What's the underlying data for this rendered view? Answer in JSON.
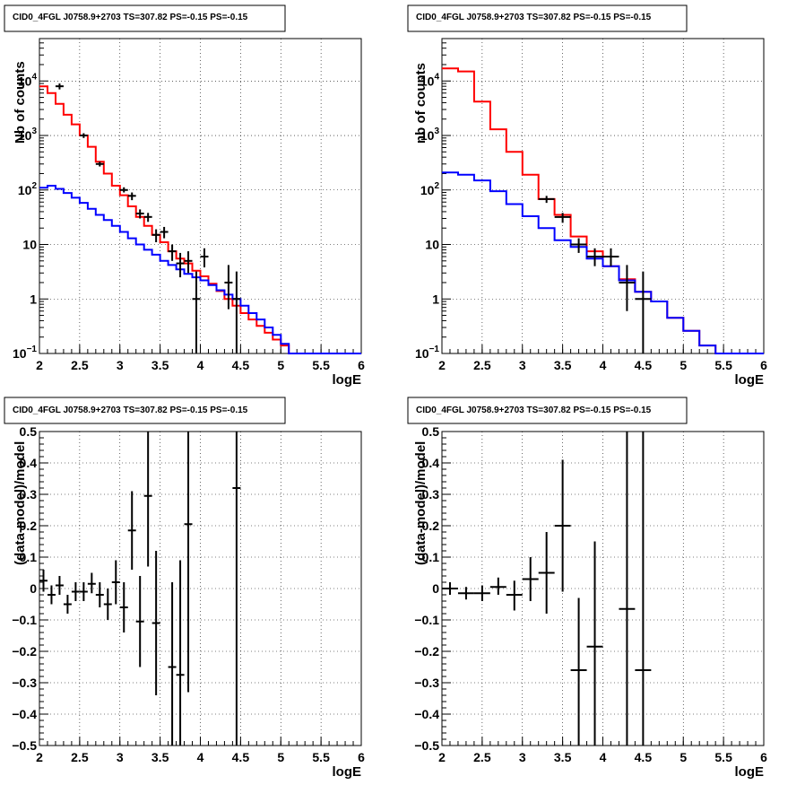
{
  "chart_data": [
    {
      "type": "line",
      "title": "CID0_4FGL J0758.9+2703 TS=307.82 PS=-0.15 PS=-0.15",
      "xlabel": "logE",
      "ylabel": "Nb of counts",
      "xlim": [
        2,
        6
      ],
      "ylim": [
        0.1,
        60000
      ],
      "yscale": "log",
      "grid": true,
      "xticks": [
        "2",
        "2.5",
        "3",
        "3.5",
        "4",
        "4.5",
        "5",
        "5.5",
        "6"
      ],
      "yticks": [
        {
          "v": 0.1,
          "base": "10",
          "exp": "−1"
        },
        {
          "v": 1,
          "text": "1"
        },
        {
          "v": 10,
          "text": "10"
        },
        {
          "v": 100,
          "base": "10",
          "exp": "2"
        },
        {
          "v": 1000,
          "base": "10",
          "exp": "3"
        },
        {
          "v": 10000,
          "base": "10",
          "exp": "4"
        }
      ],
      "bin_edges": [
        2.0,
        2.1,
        2.2,
        2.3,
        2.4,
        2.5,
        2.6,
        2.7,
        2.8,
        2.9,
        3.0,
        3.1,
        3.2,
        3.3,
        3.4,
        3.5,
        3.6,
        3.7,
        3.8,
        3.9,
        4.0,
        4.1,
        4.2,
        4.3,
        4.4,
        4.5,
        4.6,
        4.7,
        4.8,
        4.9,
        5.0,
        5.1,
        5.2,
        5.3,
        5.4,
        5.5,
        5.6,
        5.7,
        5.8,
        5.9,
        6.0
      ],
      "series": [
        {
          "color": "#ff0000",
          "values": [
            8000,
            6000,
            3800,
            2400,
            1600,
            1000,
            620,
            330,
            200,
            120,
            80,
            50,
            32,
            22,
            15,
            11,
            7.5,
            5.5,
            4.5,
            3.3,
            2.6,
            1.9,
            1.4,
            1.0,
            0.75,
            0.55,
            0.42,
            0.32,
            0.24,
            0.18,
            0.14,
            0.1,
            0.08,
            0.07,
            0.06,
            0.06,
            0.06,
            0.06,
            0.06,
            0.06
          ]
        },
        {
          "color": "#0000ff",
          "values": [
            110,
            120,
            105,
            88,
            72,
            58,
            45,
            35,
            28,
            22,
            17,
            13,
            10,
            8,
            6.5,
            5.0,
            4.2,
            3.5,
            2.9,
            2.5,
            2.2,
            1.8,
            1.45,
            1.2,
            1.0,
            0.75,
            0.55,
            0.42,
            0.3,
            0.22,
            0.15,
            0.1,
            0.08,
            0.07,
            0.06,
            0.06,
            0.06,
            0.06,
            0.06,
            0.06
          ]
        }
      ],
      "points": [
        {
          "x": 2.25,
          "y": 8000,
          "lo": 7000,
          "hi": 9000,
          "w": 0.05
        },
        {
          "x": 2.55,
          "y": 1000,
          "lo": 900,
          "hi": 1100,
          "w": 0.05
        },
        {
          "x": 2.75,
          "y": 300,
          "lo": 270,
          "hi": 330,
          "w": 0.05
        },
        {
          "x": 3.05,
          "y": 100,
          "lo": 90,
          "hi": 112,
          "w": 0.05
        },
        {
          "x": 3.15,
          "y": 78,
          "lo": 65,
          "hi": 90,
          "w": 0.05
        },
        {
          "x": 3.25,
          "y": 37,
          "lo": 30,
          "hi": 44,
          "w": 0.05
        },
        {
          "x": 3.35,
          "y": 32,
          "lo": 26,
          "hi": 38,
          "w": 0.05
        },
        {
          "x": 3.45,
          "y": 15,
          "lo": 11,
          "hi": 19,
          "w": 0.05
        },
        {
          "x": 3.55,
          "y": 17,
          "lo": 13,
          "hi": 21,
          "w": 0.05
        },
        {
          "x": 3.65,
          "y": 7.5,
          "lo": 5,
          "hi": 10,
          "w": 0.05
        },
        {
          "x": 3.75,
          "y": 4.5,
          "lo": 2.5,
          "hi": 7,
          "w": 0.05
        },
        {
          "x": 3.85,
          "y": 5.0,
          "lo": 3,
          "hi": 7.5,
          "w": 0.05
        },
        {
          "x": 3.95,
          "y": 1.0,
          "lo": 0.05,
          "hi": 3.2,
          "w": 0.05
        },
        {
          "x": 4.05,
          "y": 6.0,
          "lo": 3.8,
          "hi": 8.5,
          "w": 0.05
        },
        {
          "x": 4.35,
          "y": 2.0,
          "lo": 0.65,
          "hi": 4.2,
          "w": 0.05
        },
        {
          "x": 4.45,
          "y": 1.0,
          "lo": 0.05,
          "hi": 3.2,
          "w": 0.05
        }
      ]
    },
    {
      "type": "line",
      "title": "CID0_4FGL J0758.9+2703 TS=307.82 PS=-0.15 PS=-0.15",
      "xlabel": "logE",
      "ylabel": "nb of counts",
      "xlim": [
        2,
        6
      ],
      "ylim": [
        0.1,
        60000
      ],
      "yscale": "log",
      "grid": true,
      "xticks": [
        "2",
        "2.5",
        "3",
        "3.5",
        "4",
        "4.5",
        "5",
        "5.5",
        "6"
      ],
      "yticks": [
        {
          "v": 0.1,
          "base": "10",
          "exp": "−1"
        },
        {
          "v": 1,
          "text": "1"
        },
        {
          "v": 10,
          "text": "10"
        },
        {
          "v": 100,
          "base": "10",
          "exp": "2"
        },
        {
          "v": 1000,
          "base": "10",
          "exp": "3"
        },
        {
          "v": 10000,
          "base": "10",
          "exp": "4"
        }
      ],
      "bin_edges": [
        2.0,
        2.2,
        2.4,
        2.6,
        2.8,
        3.0,
        3.2,
        3.4,
        3.6,
        3.8,
        4.0,
        4.2,
        4.4,
        4.6,
        4.8,
        5.0,
        5.2,
        5.4,
        5.6,
        5.8,
        6.0
      ],
      "series": [
        {
          "color": "#ff0000",
          "values": [
            17000,
            15000,
            4200,
            1300,
            500,
            190,
            68,
            35,
            14,
            7.5,
            4.0,
            2.3,
            1.35,
            0.9,
            0.45,
            0.26,
            0.14,
            0.06,
            0.06,
            0.06
          ]
        },
        {
          "color": "#0000ff",
          "values": [
            210,
            190,
            150,
            95,
            55,
            33,
            20,
            12,
            9,
            5.5,
            4.0,
            2.2,
            1.35,
            0.9,
            0.45,
            0.26,
            0.14,
            0.06,
            0.06,
            0.06
          ]
        }
      ],
      "points": [
        {
          "x": 3.3,
          "y": 68,
          "lo": 58,
          "hi": 78,
          "w": 0.1
        },
        {
          "x": 3.5,
          "y": 32,
          "lo": 25,
          "hi": 38,
          "w": 0.1
        },
        {
          "x": 3.7,
          "y": 10,
          "lo": 7,
          "hi": 13,
          "w": 0.1
        },
        {
          "x": 3.9,
          "y": 6,
          "lo": 4,
          "hi": 8.5,
          "w": 0.1
        },
        {
          "x": 4.1,
          "y": 6,
          "lo": 4,
          "hi": 8.5,
          "w": 0.1
        },
        {
          "x": 4.3,
          "y": 2,
          "lo": 0.6,
          "hi": 4.2,
          "w": 0.1
        },
        {
          "x": 4.5,
          "y": 1.0,
          "lo": 0.05,
          "hi": 3.2,
          "w": 0.1
        }
      ]
    },
    {
      "type": "scatter",
      "title": "CID0_4FGL J0758.9+2703 TS=307.82 PS=-0.15 PS=-0.15",
      "xlabel": "logE",
      "ylabel": "(data-model)/model",
      "xlim": [
        2,
        6
      ],
      "ylim": [
        -0.5,
        0.5
      ],
      "yscale": "linear",
      "grid": true,
      "xticks": [
        "2",
        "2.5",
        "3",
        "3.5",
        "4",
        "4.5",
        "5",
        "5.5",
        "6"
      ],
      "yticks": [
        {
          "v": -0.5,
          "text": "−0.5"
        },
        {
          "v": -0.4,
          "text": "−0.4"
        },
        {
          "v": -0.3,
          "text": "−0.3"
        },
        {
          "v": -0.2,
          "text": "−0.2"
        },
        {
          "v": -0.1,
          "text": "−0.1"
        },
        {
          "v": 0,
          "text": "0"
        },
        {
          "v": 0.1,
          "text": "0.1"
        },
        {
          "v": 0.2,
          "text": "0.2"
        },
        {
          "v": 0.3,
          "text": "0.3"
        },
        {
          "v": 0.4,
          "text": "0.4"
        },
        {
          "v": 0.5,
          "text": "0.5"
        }
      ],
      "points": [
        {
          "x": 2.05,
          "y": 0.025,
          "lo": -0.01,
          "hi": 0.06,
          "w": 0.05
        },
        {
          "x": 2.15,
          "y": -0.02,
          "lo": -0.05,
          "hi": 0.01,
          "w": 0.05
        },
        {
          "x": 2.25,
          "y": 0.01,
          "lo": -0.02,
          "hi": 0.04,
          "w": 0.05
        },
        {
          "x": 2.35,
          "y": -0.05,
          "lo": -0.08,
          "hi": -0.02,
          "w": 0.05
        },
        {
          "x": 2.45,
          "y": -0.01,
          "lo": -0.04,
          "hi": 0.02,
          "w": 0.05
        },
        {
          "x": 2.55,
          "y": -0.01,
          "lo": -0.04,
          "hi": 0.02,
          "w": 0.05
        },
        {
          "x": 2.65,
          "y": 0.015,
          "lo": -0.015,
          "hi": 0.05,
          "w": 0.05
        },
        {
          "x": 2.75,
          "y": -0.02,
          "lo": -0.06,
          "hi": 0.02,
          "w": 0.05
        },
        {
          "x": 2.85,
          "y": -0.05,
          "lo": -0.1,
          "hi": 0.0,
          "w": 0.05
        },
        {
          "x": 2.95,
          "y": 0.02,
          "lo": -0.05,
          "hi": 0.09,
          "w": 0.05
        },
        {
          "x": 3.05,
          "y": -0.06,
          "lo": -0.14,
          "hi": 0.02,
          "w": 0.05
        },
        {
          "x": 3.15,
          "y": 0.185,
          "lo": 0.06,
          "hi": 0.31,
          "w": 0.05
        },
        {
          "x": 3.25,
          "y": -0.105,
          "lo": -0.25,
          "hi": 0.04,
          "w": 0.05
        },
        {
          "x": 3.35,
          "y": 0.295,
          "lo": 0.07,
          "hi": 0.52,
          "w": 0.05
        },
        {
          "x": 3.45,
          "y": -0.11,
          "lo": -0.34,
          "hi": 0.12,
          "w": 0.05
        },
        {
          "x": 3.65,
          "y": -0.25,
          "lo": -0.52,
          "hi": 0.02,
          "w": 0.05
        },
        {
          "x": 3.75,
          "y": -0.275,
          "lo": -0.52,
          "hi": 0.09,
          "w": 0.05
        },
        {
          "x": 3.85,
          "y": 0.205,
          "lo": -0.33,
          "hi": 0.52,
          "w": 0.05
        },
        {
          "x": 4.45,
          "y": 0.32,
          "lo": -0.52,
          "hi": 0.52,
          "w": 0.05
        }
      ]
    },
    {
      "type": "scatter",
      "title": "CID0_4FGL J0758.9+2703 TS=307.82 PS=-0.15 PS=-0.15",
      "xlabel": "logE",
      "ylabel": "(data-model)/model",
      "xlim": [
        2,
        6
      ],
      "ylim": [
        -0.5,
        0.5
      ],
      "yscale": "linear",
      "grid": true,
      "xticks": [
        "2",
        "2.5",
        "3",
        "3.5",
        "4",
        "4.5",
        "5",
        "5.5",
        "6"
      ],
      "yticks": [
        {
          "v": -0.5,
          "text": "−0.5"
        },
        {
          "v": -0.4,
          "text": "−0.4"
        },
        {
          "v": -0.3,
          "text": "−0.3"
        },
        {
          "v": -0.2,
          "text": "−0.2"
        },
        {
          "v": -0.1,
          "text": "−0.1"
        },
        {
          "v": 0,
          "text": "0"
        },
        {
          "v": 0.1,
          "text": "0.1"
        },
        {
          "v": 0.2,
          "text": "0.2"
        },
        {
          "v": 0.3,
          "text": "0.3"
        },
        {
          "v": 0.4,
          "text": "0.4"
        },
        {
          "v": 0.5,
          "text": "0.5"
        }
      ],
      "points": [
        {
          "x": 2.1,
          "y": 0.0,
          "lo": -0.02,
          "hi": 0.02,
          "w": 0.1
        },
        {
          "x": 2.3,
          "y": -0.015,
          "lo": -0.035,
          "hi": 0.005,
          "w": 0.1
        },
        {
          "x": 2.5,
          "y": -0.015,
          "lo": -0.04,
          "hi": 0.01,
          "w": 0.1
        },
        {
          "x": 2.7,
          "y": 0.005,
          "lo": -0.02,
          "hi": 0.035,
          "w": 0.1
        },
        {
          "x": 2.9,
          "y": -0.02,
          "lo": -0.07,
          "hi": 0.025,
          "w": 0.1
        },
        {
          "x": 3.1,
          "y": 0.03,
          "lo": -0.04,
          "hi": 0.1,
          "w": 0.1
        },
        {
          "x": 3.3,
          "y": 0.05,
          "lo": -0.08,
          "hi": 0.18,
          "w": 0.1
        },
        {
          "x": 3.5,
          "y": 0.2,
          "lo": -0.01,
          "hi": 0.41,
          "w": 0.1
        },
        {
          "x": 3.7,
          "y": -0.26,
          "lo": -0.52,
          "hi": -0.03,
          "w": 0.1
        },
        {
          "x": 3.9,
          "y": -0.185,
          "lo": -0.52,
          "hi": 0.15,
          "w": 0.1
        },
        {
          "x": 4.3,
          "y": -0.065,
          "lo": -0.52,
          "hi": 0.52,
          "w": 0.1
        },
        {
          "x": 4.5,
          "y": -0.26,
          "lo": -0.52,
          "hi": 0.52,
          "w": 0.1
        }
      ]
    }
  ]
}
